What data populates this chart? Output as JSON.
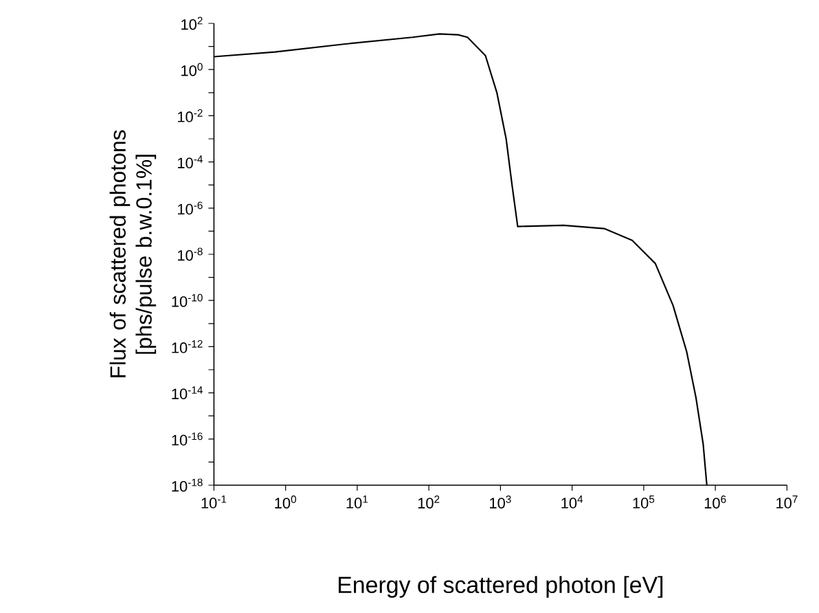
{
  "chart_data": {
    "type": "line",
    "xlabel": "Energy of scattered photon [eV]",
    "ylabel": "Flux of scattered photons [phs/pulse b.w.0.1%]",
    "log": "xy",
    "grid": false,
    "marker": "none",
    "line_style": "solid",
    "xlim": [
      0.1,
      10000000
    ],
    "ylim": [
      1e-18,
      100
    ],
    "xticks": [
      {
        "value": 0.1,
        "label": "10$^{-1}$"
      },
      {
        "value": 1,
        "label": "10$^{0}$"
      },
      {
        "value": 10,
        "label": "10$^{1}$"
      },
      {
        "value": 100,
        "label": "10$^{2}$"
      },
      {
        "value": 1000,
        "label": "10$^{3}$"
      },
      {
        "value": 10000,
        "label": "10$^{4}$"
      },
      {
        "value": 100000,
        "label": "10$^{5}$"
      },
      {
        "value": 1000000,
        "label": "10$^{6}$"
      },
      {
        "value": 10000000,
        "label": "10$^{7}$"
      }
    ],
    "yticks": [
      {
        "value": 1e-18,
        "label": "10$^{-18}$"
      },
      {
        "value": 1e-17,
        "label": null
      },
      {
        "value": 1e-16,
        "label": "10$^{-16}$"
      },
      {
        "value": 1e-15,
        "label": null
      },
      {
        "value": 1e-14,
        "label": "10$^{-14}$"
      },
      {
        "value": 1e-13,
        "label": null
      },
      {
        "value": 1e-12,
        "label": "10$^{-12}$"
      },
      {
        "value": 1e-11,
        "label": null
      },
      {
        "value": 1e-10,
        "label": "10$^{-10}$"
      },
      {
        "value": 1e-09,
        "label": null
      },
      {
        "value": 1e-08,
        "label": "10$^{-8}$"
      },
      {
        "value": 1e-07,
        "label": null
      },
      {
        "value": 1e-06,
        "label": "10$^{-6}$"
      },
      {
        "value": 1e-05,
        "label": null
      },
      {
        "value": 0.0001,
        "label": "10$^{-4}$"
      },
      {
        "value": 0.001,
        "label": null
      },
      {
        "value": 0.01,
        "label": "10$^{-2}$"
      },
      {
        "value": 0.1,
        "label": null
      },
      {
        "value": 1,
        "label": "10$^{0}$"
      },
      {
        "value": 10,
        "label": null
      },
      {
        "value": 100,
        "label": "10$^{2}$"
      }
    ],
    "series": [
      {
        "color": "#000000",
        "x": [
          0.1,
          0.71,
          6.5,
          59,
          141,
          257,
          347,
          617,
          891,
          1200,
          1450,
          1740,
          7600,
          28000,
          69000,
          145000,
          257000,
          398000,
          537000,
          676000,
          760000
        ],
        "values": [
          3.6,
          5.8,
          12.6,
          25,
          35,
          32,
          25,
          4,
          0.1,
          0.001,
          1e-05,
          1.6e-07,
          1.8e-07,
          1.3e-07,
          4e-08,
          4e-09,
          6e-11,
          6e-13,
          6e-15,
          6e-17,
          1e-18
        ]
      }
    ]
  }
}
